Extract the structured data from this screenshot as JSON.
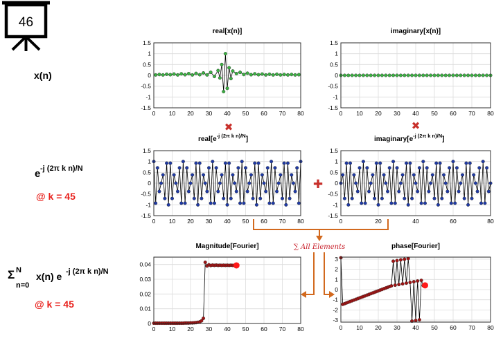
{
  "slide_number": "46",
  "labels": {
    "xn": "x(n)",
    "exp_base": "e",
    "exp_sup": "-j (2π k n)/N",
    "k_value": "@ k = 45",
    "sum_sigma": "Σ",
    "sum_upper": "N",
    "sum_lower": "n=0",
    "sum_body": "x(n) e",
    "sum_sup": "-j (2π k n)/N",
    "k_value_2": "@ k = 45",
    "sum_all": "∑ All Elements",
    "multiply_sign": "✖",
    "plus_sign": "✚"
  },
  "chart_data": [
    {
      "id": "real_x",
      "type": "line",
      "title": "real[x(n)]",
      "xlim": [
        0,
        80
      ],
      "ylim": [
        -1.5,
        1.5
      ],
      "xticks": [
        0,
        10,
        20,
        30,
        40,
        50,
        60,
        70,
        80
      ],
      "yticks": [
        "1.5",
        "1",
        "0.5",
        "0",
        "-0.5",
        "-1",
        "-1.5"
      ],
      "line_color": "#000000",
      "marker_color": "#3cb043",
      "x": [
        1,
        3,
        5,
        7,
        9,
        11,
        13,
        15,
        17,
        19,
        21,
        23,
        25,
        27,
        29,
        31,
        33,
        35,
        36,
        37,
        38,
        39,
        40,
        41,
        42,
        43,
        45,
        47,
        49,
        51,
        53,
        55,
        57,
        59,
        61,
        63,
        65,
        67,
        69,
        71,
        73,
        75,
        77,
        79
      ],
      "values": [
        0.02,
        0.04,
        0.02,
        0.05,
        0.03,
        0.06,
        0.02,
        0.07,
        0.03,
        0.08,
        0.02,
        0.09,
        0.03,
        0.11,
        0.02,
        0.14,
        -0.05,
        0.22,
        -0.12,
        0.5,
        -0.75,
        1.0,
        -0.6,
        0.35,
        -0.15,
        0.2,
        0.08,
        0.14,
        0.04,
        0.1,
        0.03,
        0.07,
        0.03,
        0.06,
        0.02,
        0.05,
        0.02,
        0.05,
        0.02,
        0.04,
        0.02,
        0.04,
        0.02,
        0.03
      ]
    },
    {
      "id": "imag_x",
      "type": "line",
      "title": "imaginary[x(n)]",
      "xlim": [
        0,
        80
      ],
      "ylim": [
        -1.5,
        1.5
      ],
      "xticks": [
        0,
        10,
        20,
        30,
        40,
        50,
        60,
        70,
        80
      ],
      "yticks": [
        "1.5",
        "1",
        "0.5",
        "0",
        "-0.5",
        "-1",
        "-1.5"
      ],
      "line_color": "#000000",
      "marker_color": "#3cb043",
      "x": [
        0,
        2,
        4,
        6,
        8,
        10,
        12,
        14,
        16,
        18,
        20,
        22,
        24,
        26,
        28,
        30,
        32,
        34,
        36,
        38,
        40,
        42,
        44,
        46,
        48,
        50,
        52,
        54,
        56,
        58,
        60,
        62,
        64,
        66,
        68,
        70,
        72,
        74,
        76,
        78,
        80
      ],
      "values": [
        0,
        0,
        0,
        0,
        0,
        0,
        0,
        0,
        0,
        0,
        0,
        0,
        0,
        0,
        0,
        0,
        0,
        0,
        0,
        0,
        0,
        0,
        0,
        0,
        0,
        0,
        0,
        0,
        0,
        0,
        0,
        0,
        0,
        0,
        0,
        0,
        0,
        0,
        0,
        0,
        0
      ]
    },
    {
      "id": "real_exp",
      "type": "line",
      "title_main": "real[e",
      "title_sup": "-j (2π k n)/N",
      "title_end": "]",
      "xlim": [
        0,
        80
      ],
      "ylim": [
        -1.5,
        1.5
      ],
      "xticks": [
        0,
        10,
        20,
        30,
        40,
        50,
        60,
        70,
        80
      ],
      "yticks": [
        "1.5",
        "1",
        "0.5",
        "0",
        "-0.5",
        "-1",
        "-1.5"
      ],
      "line_color": "#000000",
      "marker_color": "#1f3aa5",
      "function": "cos",
      "k": 45,
      "N": 80,
      "n_range": [
        0,
        80
      ]
    },
    {
      "id": "imag_exp",
      "type": "line",
      "title_main": "imaginary[e",
      "title_sup": "-j (2π k n)/N",
      "title_end": "]",
      "xlim": [
        0,
        80
      ],
      "ylim": [
        -1.5,
        1.5
      ],
      "xticks": [
        0,
        20,
        40,
        60,
        80
      ],
      "yticks": [
        "1.5",
        "1",
        "0.5",
        "0",
        "-0.5",
        "-1",
        "-1.5"
      ],
      "line_color": "#000000",
      "marker_color": "#1f3aa5",
      "function": "-sin",
      "k": 45,
      "N": 80,
      "n_range": [
        0,
        80
      ]
    },
    {
      "id": "magnitude",
      "type": "line",
      "title": "Magnitude[Fourier]",
      "xlim": [
        0,
        80
      ],
      "ylim": [
        0,
        0.045
      ],
      "xticks": [
        0,
        10,
        20,
        30,
        40,
        50,
        60,
        70,
        80
      ],
      "yticks": [
        "0.04",
        "0.03",
        "0.02",
        "0.01",
        "0"
      ],
      "line_color": "#000000",
      "marker_color": "#a01515",
      "highlight_color": "#ff1a1a",
      "x": [
        0,
        1,
        2,
        3,
        4,
        5,
        6,
        7,
        8,
        9,
        10,
        11,
        12,
        13,
        14,
        15,
        16,
        17,
        18,
        19,
        20,
        21,
        22,
        23,
        24,
        25,
        26,
        27,
        28,
        29,
        30,
        31,
        32,
        33,
        34,
        35,
        36,
        37,
        38,
        39,
        40,
        41,
        42,
        43,
        44,
        45
      ],
      "values": [
        0.0002,
        0.0002,
        0.0002,
        0.0002,
        0.0002,
        0.0002,
        0.0002,
        0.0002,
        0.0002,
        0.0002,
        0.0002,
        0.0002,
        0.0002,
        0.0002,
        0.0002,
        0.0002,
        0.0002,
        0.0003,
        0.0003,
        0.0003,
        0.0004,
        0.0004,
        0.0005,
        0.0006,
        0.0008,
        0.0011,
        0.0018,
        0.0035,
        0.0415,
        0.039,
        0.0398,
        0.0393,
        0.0396,
        0.0394,
        0.0396,
        0.0394,
        0.0395,
        0.0394,
        0.0395,
        0.0394,
        0.0395,
        0.0394,
        0.0395,
        0.0394,
        0.0394,
        0.0394
      ],
      "highlight": {
        "x": 45,
        "y": 0.0394
      }
    },
    {
      "id": "phase",
      "type": "line",
      "title": "phase[Fourier]",
      "xlim": [
        0,
        80
      ],
      "ylim": [
        -3.2,
        3.2
      ],
      "xticks": [
        0,
        10,
        20,
        30,
        40,
        50,
        60,
        70,
        80
      ],
      "yticks": [
        "3",
        "2",
        "1",
        "0",
        "-1",
        "-2",
        "-3"
      ],
      "line_color": "#000000",
      "marker_color": "#a01515",
      "highlight_color": "#ff1a1a",
      "x": [
        0,
        1,
        2,
        3,
        4,
        5,
        6,
        7,
        8,
        9,
        10,
        11,
        12,
        13,
        14,
        15,
        16,
        17,
        18,
        19,
        20,
        21,
        22,
        23,
        24,
        25,
        26,
        27,
        28,
        29,
        30,
        31,
        32,
        33,
        34,
        35,
        36,
        37,
        38,
        39,
        40,
        41,
        42,
        43,
        44,
        45
      ],
      "values": [
        3.14,
        -1.45,
        -1.38,
        -1.31,
        -1.24,
        -1.17,
        -1.1,
        -1.03,
        -0.96,
        -0.89,
        -0.82,
        -0.75,
        -0.68,
        -0.61,
        -0.54,
        -0.47,
        -0.4,
        -0.33,
        -0.26,
        -0.19,
        -0.12,
        -0.05,
        0.02,
        0.09,
        0.16,
        0.23,
        0.3,
        0.37,
        2.8,
        0.44,
        2.86,
        0.5,
        2.93,
        0.57,
        2.99,
        0.64,
        3.06,
        0.71,
        -3.1,
        0.78,
        -3.04,
        0.85,
        -2.97,
        0.91,
        0.4,
        0.42
      ],
      "highlight": {
        "x": 45,
        "y": 0.42
      }
    }
  ]
}
